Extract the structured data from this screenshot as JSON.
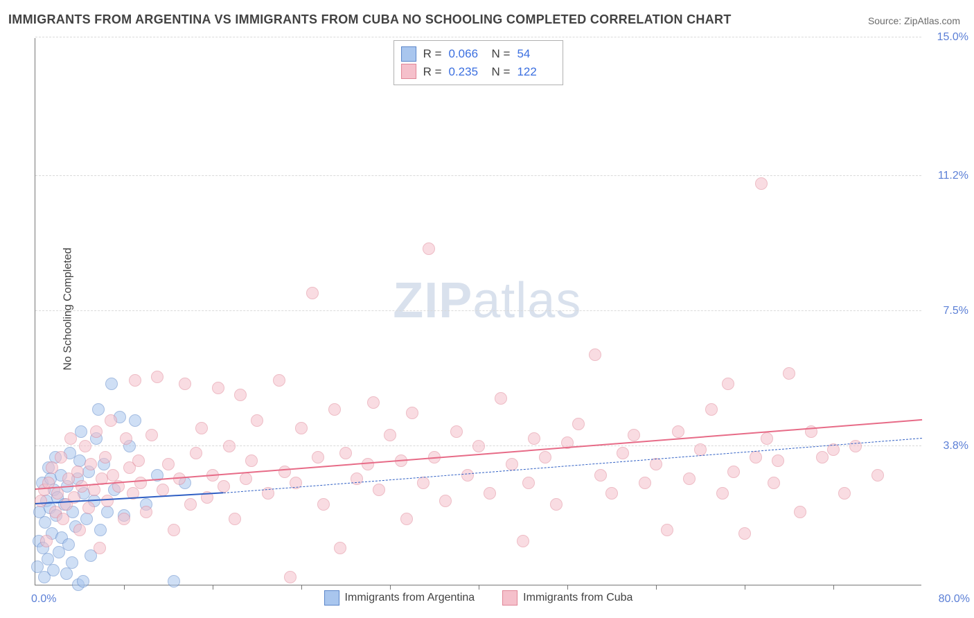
{
  "title": "IMMIGRANTS FROM ARGENTINA VS IMMIGRANTS FROM CUBA NO SCHOOLING COMPLETED CORRELATION CHART",
  "source_label": "Source: ZipAtlas.com",
  "ylabel": "No Schooling Completed",
  "watermark_bold": "ZIP",
  "watermark_light": "atlas",
  "chart": {
    "type": "scatter",
    "xlim": [
      0,
      80
    ],
    "ylim": [
      0,
      15
    ],
    "x_min_label": "0.0%",
    "x_max_label": "80.0%",
    "y_ticks": [
      3.8,
      7.5,
      11.2,
      15.0
    ],
    "y_tick_labels": [
      "3.8%",
      "7.5%",
      "11.2%",
      "15.0%"
    ],
    "x_tick_positions": [
      8,
      16,
      24,
      32,
      40,
      48,
      56,
      64,
      72
    ],
    "grid_color": "#d9d9d9",
    "axis_label_color": "#5b7fd6",
    "plot_bg": "#ffffff",
    "point_radius": 9,
    "point_opacity": 0.55,
    "series": [
      {
        "name": "Immigrants from Argentina",
        "fill": "#a9c6ee",
        "stroke": "#5b86c9",
        "stats_r": "0.066",
        "stats_n": "54",
        "trend": {
          "x0": 0,
          "y0": 2.2,
          "x1": 17,
          "y1": 2.5,
          "color": "#2f5fc4",
          "width": 2.5,
          "dash": false
        },
        "trend_ext": {
          "x0": 17,
          "y0": 2.5,
          "x1": 80,
          "y1": 4.0,
          "color": "#2f5fc4",
          "width": 1.8,
          "dash": true
        },
        "points": [
          [
            0.2,
            0.5
          ],
          [
            0.3,
            1.2
          ],
          [
            0.4,
            2.0
          ],
          [
            0.6,
            2.8
          ],
          [
            0.7,
            1.0
          ],
          [
            0.8,
            0.2
          ],
          [
            0.9,
            1.7
          ],
          [
            1.0,
            2.3
          ],
          [
            1.1,
            0.7
          ],
          [
            1.2,
            3.2
          ],
          [
            1.3,
            2.1
          ],
          [
            1.4,
            2.9
          ],
          [
            1.5,
            1.4
          ],
          [
            1.6,
            0.4
          ],
          [
            1.7,
            2.6
          ],
          [
            1.8,
            3.5
          ],
          [
            1.9,
            1.9
          ],
          [
            2.0,
            2.4
          ],
          [
            2.1,
            0.9
          ],
          [
            2.3,
            3.0
          ],
          [
            2.4,
            1.3
          ],
          [
            2.6,
            2.2
          ],
          [
            2.8,
            0.3
          ],
          [
            2.9,
            2.7
          ],
          [
            3.0,
            1.1
          ],
          [
            3.1,
            3.6
          ],
          [
            3.3,
            0.6
          ],
          [
            3.4,
            2.0
          ],
          [
            3.6,
            1.6
          ],
          [
            3.8,
            2.9
          ],
          [
            3.9,
            0.0
          ],
          [
            4.0,
            3.4
          ],
          [
            4.1,
            4.2
          ],
          [
            4.3,
            0.1
          ],
          [
            4.4,
            2.5
          ],
          [
            4.6,
            1.8
          ],
          [
            4.8,
            3.1
          ],
          [
            5.0,
            0.8
          ],
          [
            5.3,
            2.3
          ],
          [
            5.5,
            4.0
          ],
          [
            5.7,
            4.8
          ],
          [
            5.9,
            1.5
          ],
          [
            6.2,
            3.3
          ],
          [
            6.5,
            2.0
          ],
          [
            6.9,
            5.5
          ],
          [
            7.1,
            2.6
          ],
          [
            7.6,
            4.6
          ],
          [
            8.0,
            1.9
          ],
          [
            8.5,
            3.8
          ],
          [
            9.0,
            4.5
          ],
          [
            10.0,
            2.2
          ],
          [
            11.0,
            3.0
          ],
          [
            12.5,
            0.1
          ],
          [
            13.5,
            2.8
          ]
        ]
      },
      {
        "name": "Immigrants from Cuba",
        "fill": "#f5c0cb",
        "stroke": "#e08697",
        "stats_r": "0.235",
        "stats_n": "122",
        "trend": {
          "x0": 0,
          "y0": 2.6,
          "x1": 80,
          "y1": 4.5,
          "color": "#e76b87",
          "width": 2.5,
          "dash": false
        },
        "points": [
          [
            0.5,
            2.3
          ],
          [
            0.8,
            2.6
          ],
          [
            1.0,
            1.2
          ],
          [
            1.2,
            2.8
          ],
          [
            1.5,
            3.2
          ],
          [
            1.8,
            2.0
          ],
          [
            2.0,
            2.5
          ],
          [
            2.3,
            3.5
          ],
          [
            2.5,
            1.8
          ],
          [
            2.8,
            2.2
          ],
          [
            3.0,
            2.9
          ],
          [
            3.2,
            4.0
          ],
          [
            3.5,
            2.4
          ],
          [
            3.8,
            3.1
          ],
          [
            4.0,
            1.5
          ],
          [
            4.2,
            2.7
          ],
          [
            4.5,
            3.8
          ],
          [
            4.8,
            2.1
          ],
          [
            5.0,
            3.3
          ],
          [
            5.3,
            2.6
          ],
          [
            5.5,
            4.2
          ],
          [
            5.8,
            1.0
          ],
          [
            6.0,
            2.9
          ],
          [
            6.3,
            3.5
          ],
          [
            6.5,
            2.3
          ],
          [
            6.8,
            4.5
          ],
          [
            7.0,
            3.0
          ],
          [
            7.5,
            2.7
          ],
          [
            8.0,
            1.8
          ],
          [
            8.2,
            4.0
          ],
          [
            8.5,
            3.2
          ],
          [
            8.8,
            2.5
          ],
          [
            9.0,
            5.6
          ],
          [
            9.3,
            3.4
          ],
          [
            9.5,
            2.8
          ],
          [
            10.0,
            2.0
          ],
          [
            10.5,
            4.1
          ],
          [
            11.0,
            5.7
          ],
          [
            11.5,
            2.6
          ],
          [
            12.0,
            3.3
          ],
          [
            12.5,
            1.5
          ],
          [
            13.0,
            2.9
          ],
          [
            13.5,
            5.5
          ],
          [
            14.0,
            2.2
          ],
          [
            14.5,
            3.6
          ],
          [
            15.0,
            4.3
          ],
          [
            15.5,
            2.4
          ],
          [
            16.0,
            3.0
          ],
          [
            16.5,
            5.4
          ],
          [
            17.0,
            2.7
          ],
          [
            17.5,
            3.8
          ],
          [
            18.0,
            1.8
          ],
          [
            18.5,
            5.2
          ],
          [
            19.0,
            2.9
          ],
          [
            19.5,
            3.4
          ],
          [
            20.0,
            4.5
          ],
          [
            21.0,
            2.5
          ],
          [
            22.0,
            5.6
          ],
          [
            22.5,
            3.1
          ],
          [
            23.0,
            0.2
          ],
          [
            23.5,
            2.8
          ],
          [
            24.0,
            4.3
          ],
          [
            25.0,
            8.0
          ],
          [
            25.5,
            3.5
          ],
          [
            26.0,
            2.2
          ],
          [
            27.0,
            4.8
          ],
          [
            27.5,
            1.0
          ],
          [
            28.0,
            3.6
          ],
          [
            29.0,
            2.9
          ],
          [
            30.0,
            3.3
          ],
          [
            30.5,
            5.0
          ],
          [
            31.0,
            2.6
          ],
          [
            32.0,
            4.1
          ],
          [
            33.0,
            3.4
          ],
          [
            33.5,
            1.8
          ],
          [
            34.0,
            4.7
          ],
          [
            35.0,
            2.8
          ],
          [
            35.5,
            9.2
          ],
          [
            36.0,
            3.5
          ],
          [
            37.0,
            2.3
          ],
          [
            38.0,
            4.2
          ],
          [
            39.0,
            3.0
          ],
          [
            40.0,
            3.8
          ],
          [
            41.0,
            2.5
          ],
          [
            42.0,
            5.1
          ],
          [
            43.0,
            3.3
          ],
          [
            44.0,
            1.2
          ],
          [
            44.5,
            2.8
          ],
          [
            45.0,
            4.0
          ],
          [
            46.0,
            3.5
          ],
          [
            47.0,
            2.2
          ],
          [
            48.0,
            3.9
          ],
          [
            49.0,
            4.4
          ],
          [
            50.5,
            6.3
          ],
          [
            51.0,
            3.0
          ],
          [
            52.0,
            2.5
          ],
          [
            53.0,
            3.6
          ],
          [
            54.0,
            4.1
          ],
          [
            55.0,
            2.8
          ],
          [
            56.0,
            3.3
          ],
          [
            57.0,
            1.5
          ],
          [
            58.0,
            4.2
          ],
          [
            59.0,
            2.9
          ],
          [
            60.0,
            3.7
          ],
          [
            61.0,
            4.8
          ],
          [
            62.0,
            2.5
          ],
          [
            62.5,
            5.5
          ],
          [
            63.0,
            3.1
          ],
          [
            64.0,
            1.4
          ],
          [
            65.0,
            3.5
          ],
          [
            65.5,
            11.0
          ],
          [
            66.0,
            4.0
          ],
          [
            66.6,
            2.8
          ],
          [
            67.0,
            3.4
          ],
          [
            68.0,
            5.8
          ],
          [
            69.0,
            2.0
          ],
          [
            70.0,
            4.2
          ],
          [
            71.0,
            3.5
          ],
          [
            72.0,
            3.7
          ],
          [
            73.0,
            2.5
          ],
          [
            74.0,
            3.8
          ],
          [
            76.0,
            3.0
          ]
        ]
      }
    ]
  }
}
